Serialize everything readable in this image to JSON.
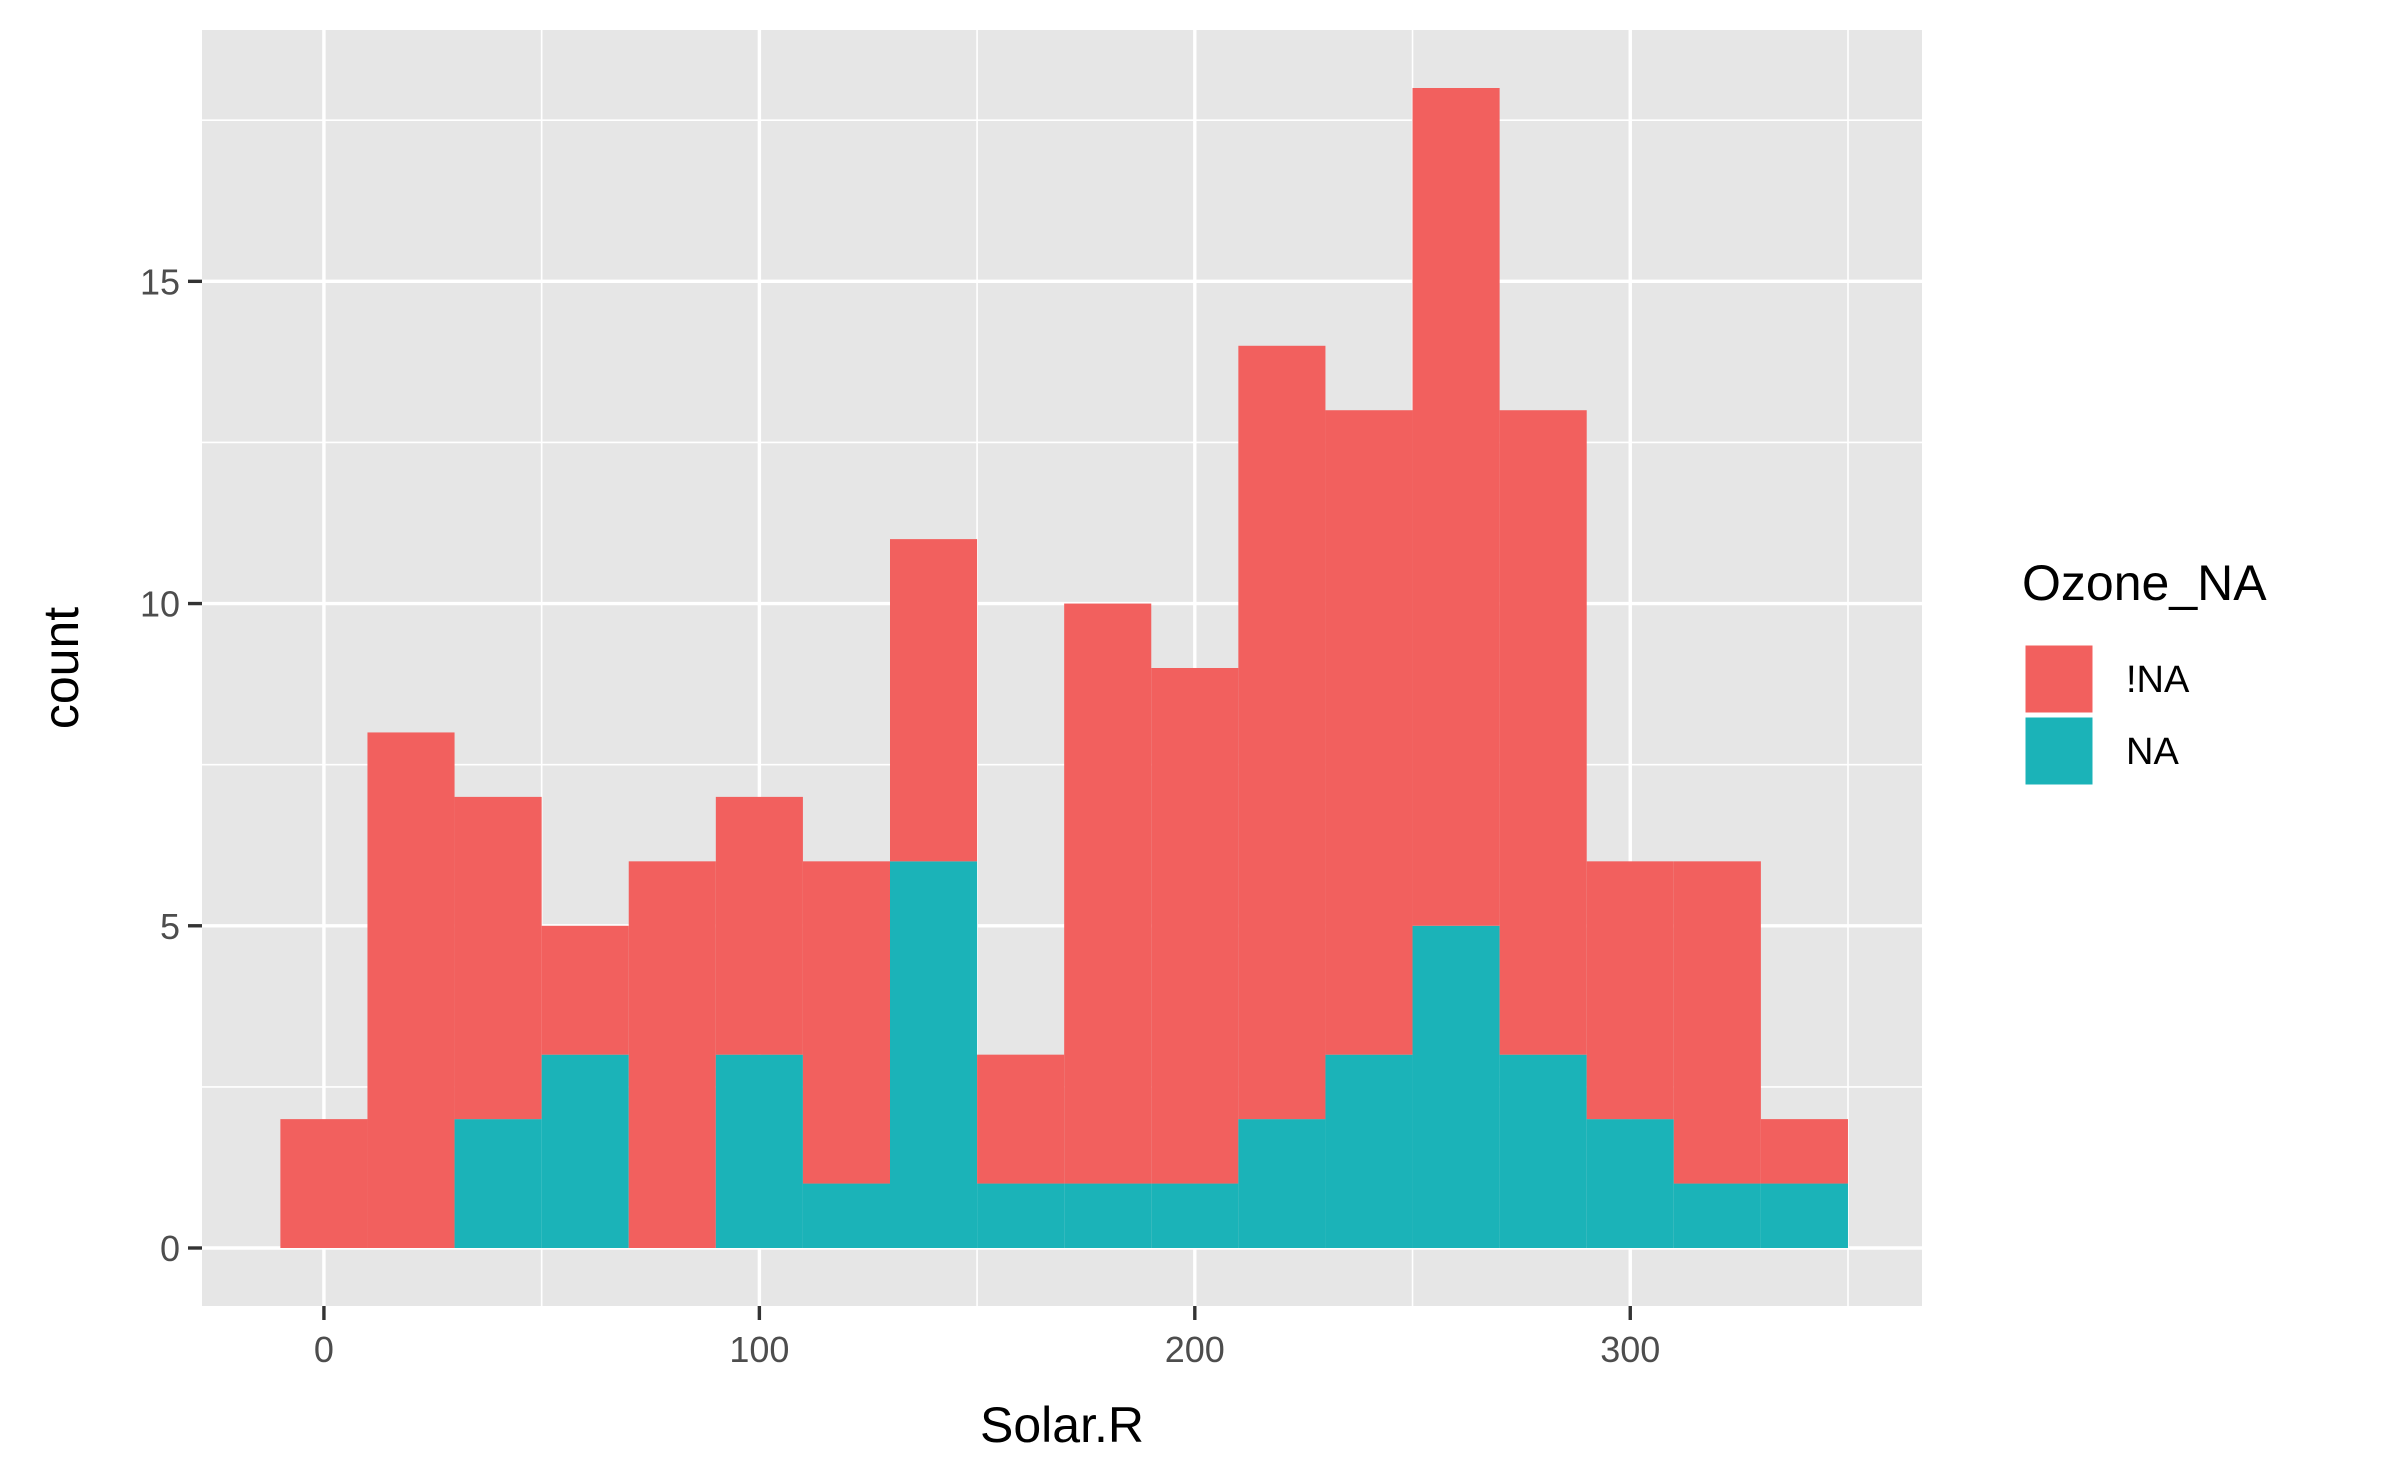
{
  "chart_data": {
    "type": "bar",
    "stacked": true,
    "title": "",
    "xlabel": "Solar.R",
    "ylabel": "count",
    "bin_width": 20,
    "bin_starts": [
      -10,
      10,
      30,
      50,
      70,
      90,
      110,
      130,
      150,
      170,
      190,
      210,
      230,
      250,
      270,
      290,
      310,
      330
    ],
    "xlim": [
      -28,
      367
    ],
    "ylim": [
      -0.9,
      18.9
    ],
    "x_ticks": [
      0,
      100,
      200,
      300
    ],
    "y_ticks": [
      0,
      5,
      10,
      15
    ],
    "x_tick_labels": [
      "0",
      "100",
      "200",
      "300"
    ],
    "y_tick_labels": [
      "0",
      "5",
      "10",
      "15"
    ],
    "grid": true,
    "legend_title": "Ozone_NA",
    "legend_position": "right",
    "series": [
      {
        "name": "!NA",
        "color": "#F2605E",
        "values": [
          2,
          8,
          5,
          2,
          6,
          4,
          5,
          5,
          2,
          9,
          8,
          12,
          10,
          13,
          10,
          4,
          5,
          1
        ]
      },
      {
        "name": "NA",
        "color": "#1BB3B8",
        "values": [
          0,
          0,
          2,
          3,
          0,
          3,
          1,
          6,
          1,
          1,
          1,
          2,
          3,
          5,
          3,
          2,
          1,
          1
        ]
      }
    ],
    "totals": [
      2,
      8,
      7,
      5,
      6,
      7,
      6,
      11,
      3,
      10,
      9,
      14,
      13,
      18,
      13,
      6,
      6,
      2
    ]
  }
}
